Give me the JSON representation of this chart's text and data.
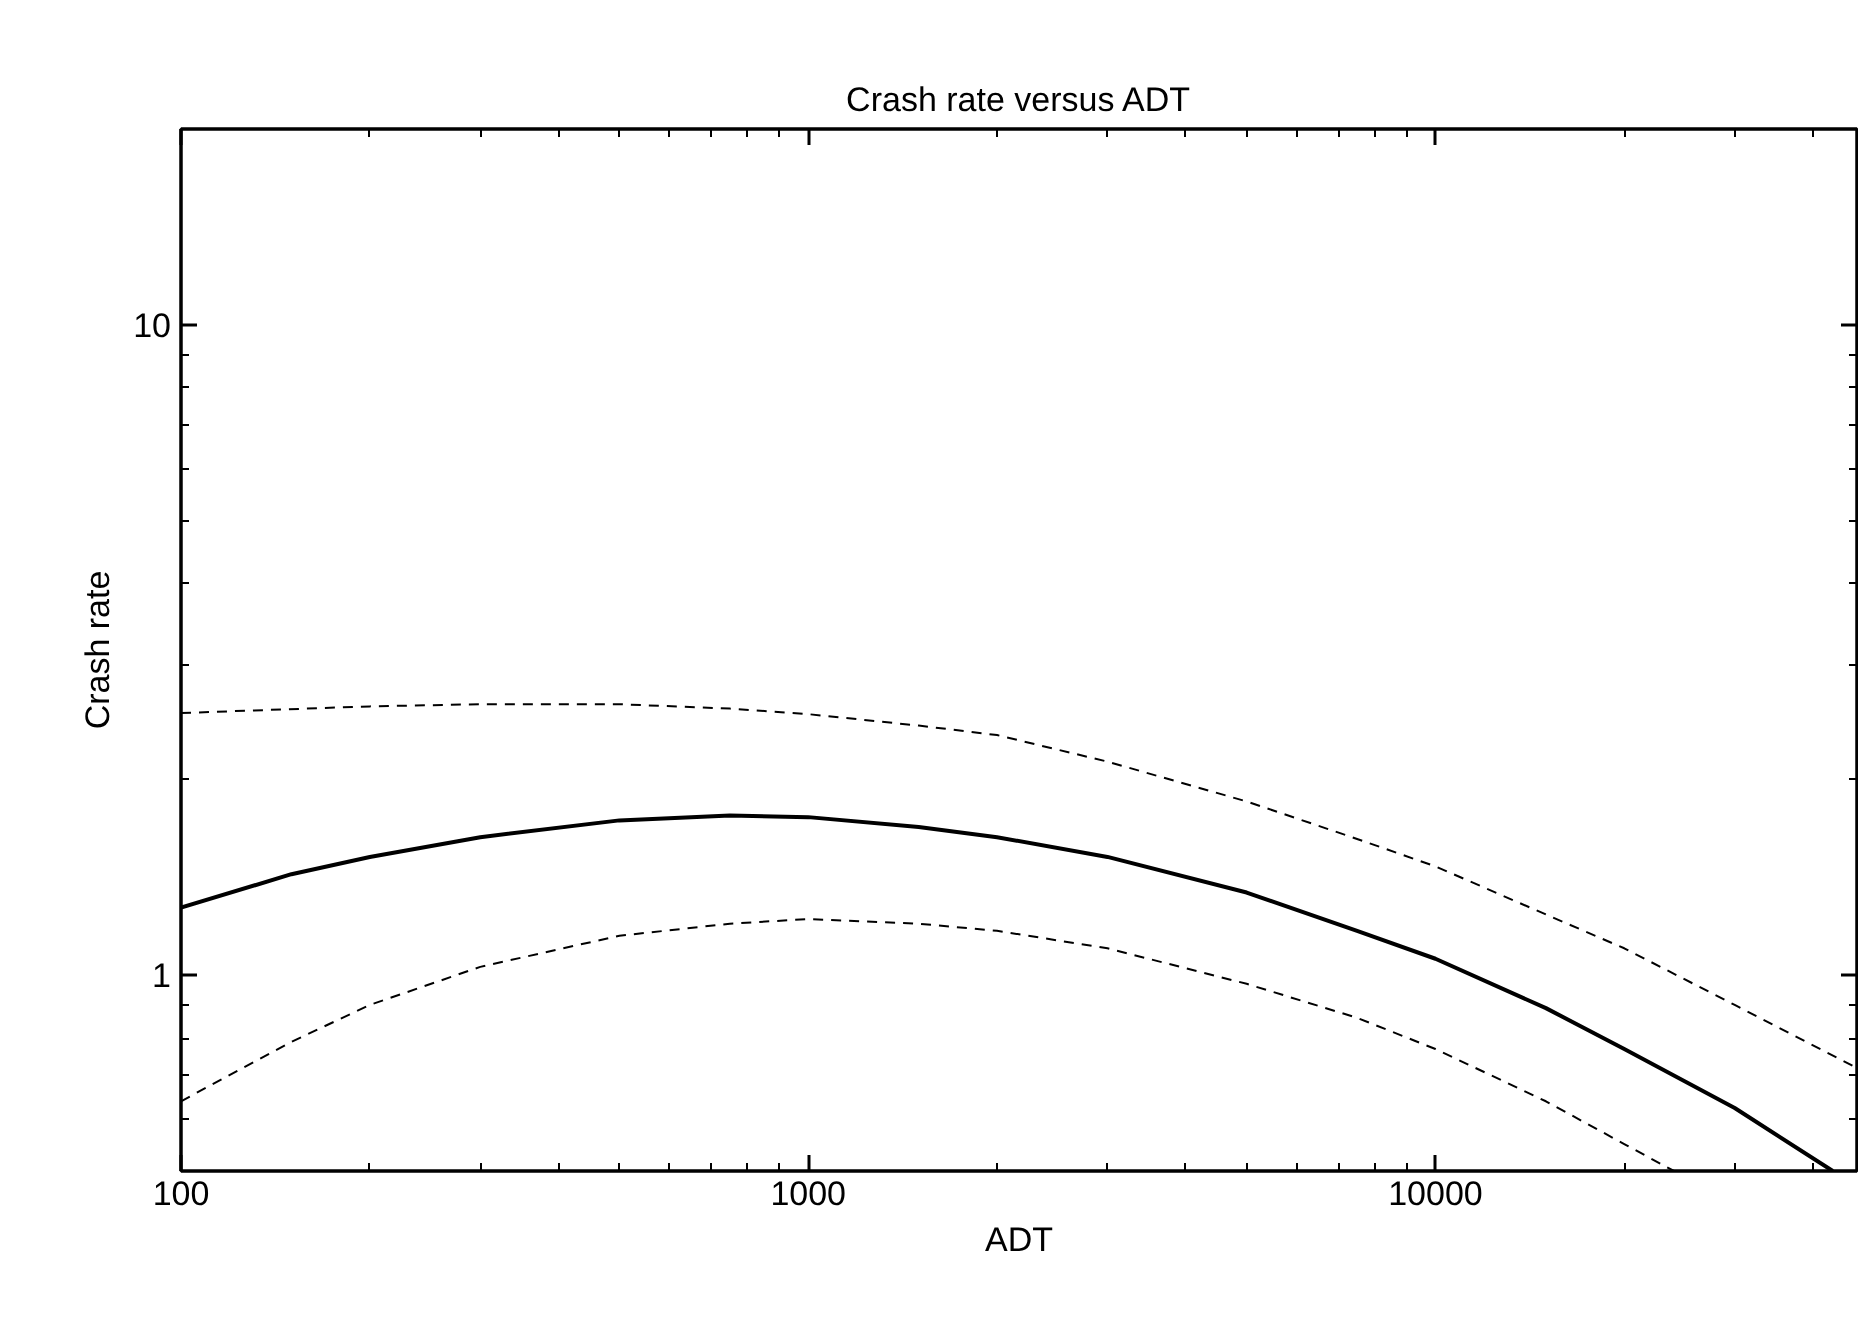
{
  "chart_data": {
    "type": "line",
    "title": "Crash rate versus ADT",
    "xlabel": "ADT",
    "ylabel": "Crash rate",
    "xlim": [
      100,
      47000
    ],
    "ylim": [
      0.5,
      20
    ],
    "xticks": [
      100,
      1000,
      10000
    ],
    "yticks": [
      1,
      10
    ],
    "log": "xy",
    "grid": false,
    "series": [
      {
        "color": "#000000",
        "line_style": "dashed",
        "x": [
          100,
          200,
          300,
          500,
          750,
          1000,
          1500,
          2000,
          3000,
          5000,
          7500,
          10000,
          15000,
          20000,
          30000,
          47000
        ],
        "values": [
          2.53,
          2.59,
          2.61,
          2.61,
          2.57,
          2.52,
          2.42,
          2.34,
          2.13,
          1.85,
          1.62,
          1.47,
          1.24,
          1.1,
          0.9,
          0.72
        ]
      },
      {
        "color": "#000000",
        "line_style": "solid",
        "x": [
          100,
          150,
          200,
          300,
          500,
          750,
          1000,
          1500,
          2000,
          3000,
          5000,
          7500,
          10000,
          15000,
          20000,
          30000,
          43000
        ],
        "values": [
          1.27,
          1.43,
          1.52,
          1.63,
          1.73,
          1.76,
          1.75,
          1.69,
          1.63,
          1.52,
          1.34,
          1.17,
          1.06,
          0.89,
          0.77,
          0.625,
          0.5
        ]
      },
      {
        "color": "#000000",
        "line_style": "dashed",
        "x": [
          100,
          150,
          200,
          300,
          500,
          750,
          1000,
          1500,
          2000,
          3000,
          5000,
          7500,
          10000,
          15000,
          20000,
          24000
        ],
        "values": [
          0.64,
          0.79,
          0.9,
          1.03,
          1.15,
          1.2,
          1.22,
          1.2,
          1.17,
          1.1,
          0.97,
          0.86,
          0.77,
          0.64,
          0.55,
          0.5
        ]
      }
    ]
  }
}
